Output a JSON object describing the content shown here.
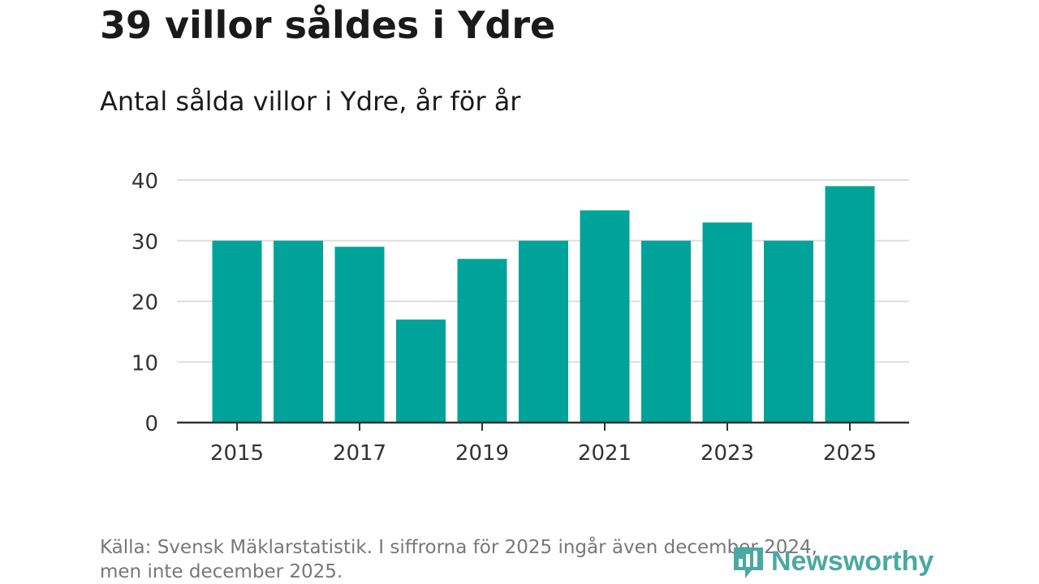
{
  "header": {
    "title": "39 villor såldes i Ydre",
    "subtitle": "Antal sålda villor i Ydre, år för år"
  },
  "footer": {
    "source": "Källa: Svensk Mäklarstatistik. I siffrorna för 2025 ingår även december 2024, men inte december 2025.",
    "brand": "Newsworthy"
  },
  "colors": {
    "bar": "#00a39a",
    "grid": "#dddddd",
    "axis": "#333333",
    "brand": "#4aa8a2"
  },
  "chart_data": {
    "type": "bar",
    "categories": [
      "2015",
      "2016",
      "2017",
      "2018",
      "2019",
      "2020",
      "2021",
      "2022",
      "2023",
      "2024",
      "2025"
    ],
    "values": [
      30,
      30,
      29,
      17,
      27,
      30,
      35,
      30,
      33,
      30,
      39
    ],
    "x_tick_labels": [
      "2015",
      "2017",
      "2019",
      "2021",
      "2023",
      "2025"
    ],
    "y_ticks": [
      0,
      10,
      20,
      30,
      40
    ],
    "ylim": [
      0,
      40
    ],
    "grid": true,
    "legend": "none",
    "title": "39 villor såldes i Ydre",
    "xlabel": "",
    "ylabel": ""
  }
}
